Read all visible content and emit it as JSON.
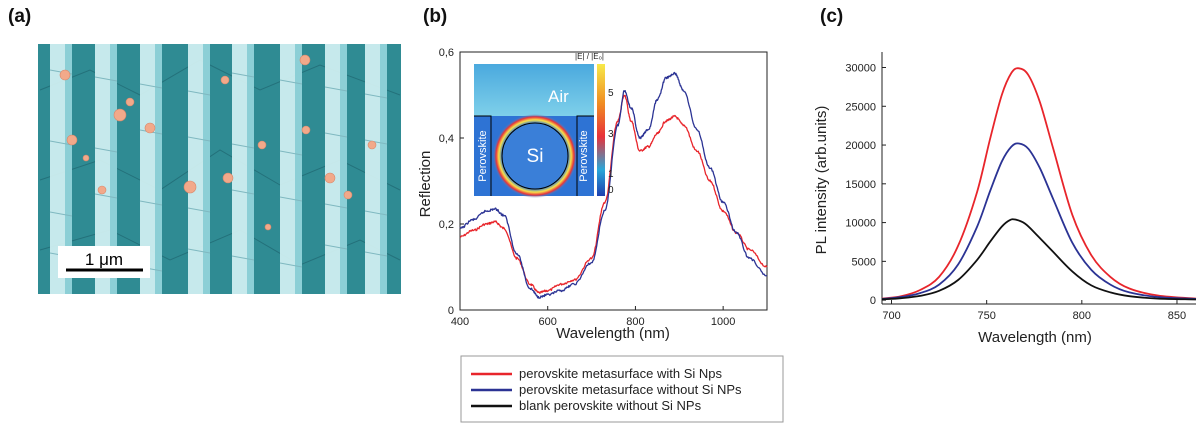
{
  "panels": {
    "a": {
      "label": "(a)",
      "scale_bar": "1 μm"
    },
    "b": {
      "label": "(b)",
      "inset": {
        "colorbar_title": "|E| / |E₀|",
        "colorbar_ticks": [
          "5",
          "3",
          "1",
          "0"
        ],
        "labels": {
          "air": "Air",
          "si": "Si",
          "left": "Perovskite",
          "right": "Perovskite"
        }
      }
    },
    "c": {
      "label": "(c)"
    }
  },
  "colors": {
    "red": "#e8252b",
    "blue": "#2b3394",
    "black": "#111111"
  },
  "legend": {
    "entries": [
      {
        "label": "perovskite metasurface with Si Nps",
        "color": "#e8252b"
      },
      {
        "label": "perovskite metasurface without Si NPs",
        "color": "#2b3394"
      },
      {
        "label": "blank perovskite without Si NPs",
        "color": "#111111"
      }
    ]
  },
  "chart_data": [
    {
      "type": "line",
      "panel": "b",
      "xlabel": "Wavelength (nm)",
      "ylabel": "Reflection",
      "xlim": [
        400,
        1100
      ],
      "ylim": [
        0,
        0.6
      ],
      "xticks": [
        400,
        600,
        800,
        1000
      ],
      "yticks": [
        0,
        0.2,
        0.4,
        0.6
      ],
      "xtick_labels": [
        "400",
        "600",
        "800",
        "1000"
      ],
      "ytick_labels": [
        "0",
        "0,2",
        "0,4",
        "0,6"
      ],
      "series": [
        {
          "color": "#e8252b",
          "x": [
            400,
            430,
            460,
            480,
            500,
            530,
            560,
            580,
            600,
            630,
            660,
            700,
            730,
            760,
            775,
            790,
            810,
            830,
            850,
            870,
            890,
            910,
            940,
            970,
            1000,
            1030,
            1060,
            1100
          ],
          "y": [
            0.17,
            0.185,
            0.2,
            0.205,
            0.19,
            0.12,
            0.06,
            0.04,
            0.045,
            0.06,
            0.07,
            0.12,
            0.25,
            0.44,
            0.5,
            0.44,
            0.37,
            0.38,
            0.41,
            0.44,
            0.45,
            0.43,
            0.37,
            0.3,
            0.23,
            0.18,
            0.14,
            0.1
          ]
        },
        {
          "color": "#2b3394",
          "x": [
            400,
            430,
            460,
            480,
            500,
            530,
            560,
            580,
            600,
            630,
            660,
            700,
            730,
            760,
            775,
            790,
            810,
            830,
            850,
            870,
            890,
            910,
            940,
            970,
            1000,
            1030,
            1060,
            1100
          ],
          "y": [
            0.19,
            0.21,
            0.23,
            0.235,
            0.22,
            0.13,
            0.05,
            0.03,
            0.035,
            0.045,
            0.06,
            0.11,
            0.23,
            0.43,
            0.51,
            0.47,
            0.4,
            0.42,
            0.49,
            0.54,
            0.55,
            0.51,
            0.42,
            0.33,
            0.25,
            0.18,
            0.12,
            0.08
          ]
        }
      ]
    },
    {
      "type": "line",
      "panel": "c",
      "xlabel": "Wavelength (nm)",
      "ylabel": "PL intensity (arb.units)",
      "xlim": [
        695,
        860
      ],
      "ylim": [
        -500,
        32000
      ],
      "xticks": [
        700,
        750,
        800,
        850
      ],
      "yticks": [
        0,
        5000,
        10000,
        15000,
        20000,
        25000,
        30000
      ],
      "xtick_labels": [
        "700",
        "750",
        "800",
        "850"
      ],
      "ytick_labels": [
        "0",
        "5000",
        "10000",
        "15000",
        "20000",
        "25000",
        "30000"
      ],
      "series": [
        {
          "color": "#e8252b",
          "x": [
            695,
            705,
            715,
            725,
            735,
            745,
            752,
            758,
            763,
            767,
            772,
            778,
            785,
            795,
            805,
            815,
            825,
            840,
            860
          ],
          "y": [
            200,
            500,
            1300,
            3000,
            7000,
            14000,
            21000,
            26500,
            29300,
            29900,
            29000,
            25500,
            19500,
            11000,
            5800,
            3000,
            1500,
            600,
            200
          ]
        },
        {
          "color": "#2b3394",
          "x": [
            695,
            705,
            715,
            725,
            735,
            745,
            752,
            758,
            763,
            767,
            772,
            778,
            785,
            795,
            805,
            815,
            825,
            840,
            860
          ],
          "y": [
            150,
            400,
            900,
            2000,
            4600,
            9500,
            14200,
            17900,
            19800,
            20200,
            19500,
            17000,
            13000,
            7400,
            3900,
            2000,
            1000,
            400,
            150
          ]
        },
        {
          "color": "#111111",
          "x": [
            695,
            705,
            715,
            725,
            735,
            745,
            752,
            758,
            762,
            765,
            770,
            776,
            785,
            795,
            805,
            815,
            825,
            840,
            860
          ],
          "y": [
            100,
            250,
            550,
            1200,
            2600,
            5200,
            7600,
            9500,
            10300,
            10400,
            9900,
            8500,
            6200,
            3700,
            1900,
            1000,
            500,
            200,
            80
          ]
        }
      ]
    }
  ]
}
